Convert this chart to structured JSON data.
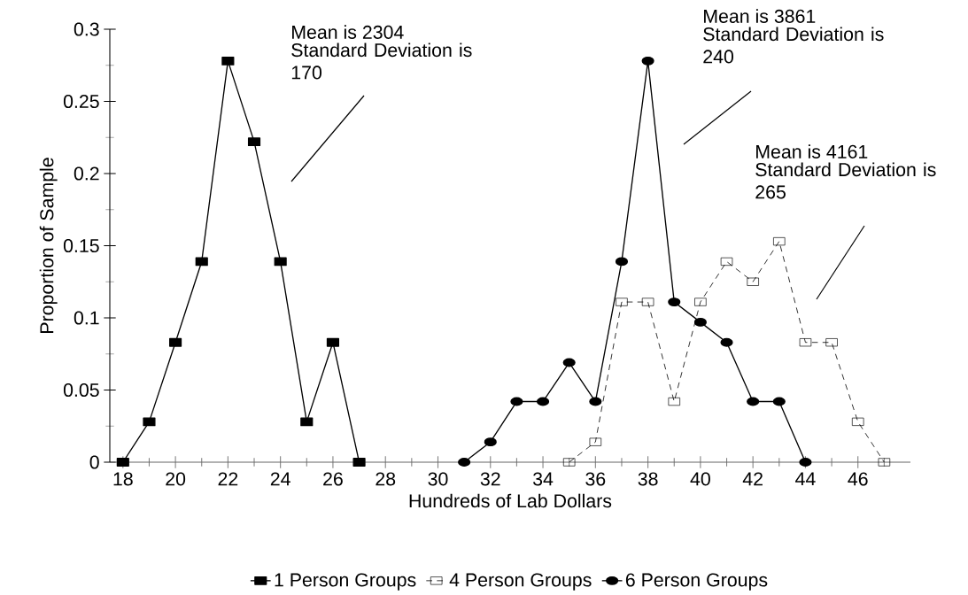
{
  "chart_data": {
    "type": "line",
    "xlabel": "Hundreds of Lab Dollars",
    "ylabel": "Proportion of Sample",
    "xlim": [
      17.5,
      48
    ],
    "ylim": [
      0,
      0.3
    ],
    "xticks": [
      18,
      {
        "value": 19,
        "label": null
      },
      20,
      {
        "value": 21,
        "label": null
      },
      22,
      {
        "value": 23,
        "label": null
      },
      24,
      {
        "value": 25,
        "label": null
      },
      26,
      {
        "value": 27,
        "label": null
      },
      28,
      {
        "value": 29,
        "label": null
      },
      30,
      {
        "value": 31,
        "label": null
      },
      32,
      {
        "value": 33,
        "label": null
      },
      34,
      {
        "value": 35,
        "label": null
      },
      36,
      {
        "value": 37,
        "label": null
      },
      38,
      {
        "value": 39,
        "label": null
      },
      40,
      {
        "value": 41,
        "label": null
      },
      42,
      {
        "value": 43,
        "label": null
      },
      44,
      {
        "value": 45,
        "label": null
      },
      46,
      {
        "value": 47,
        "label": null
      }
    ],
    "yticks": [
      0,
      {
        "value": 0.025,
        "label": null
      },
      0.05,
      {
        "value": 0.075,
        "label": null
      },
      0.1,
      {
        "value": 0.125,
        "label": null
      },
      0.15,
      {
        "value": 0.175,
        "label": null
      },
      0.2,
      {
        "value": 0.225,
        "label": null
      },
      0.25,
      {
        "value": 0.275,
        "label": null
      },
      0.3
    ],
    "grid": false,
    "legend": "bottom",
    "series": [
      {
        "name": "1 Person Groups",
        "color": "#000000",
        "marker": "square",
        "line_style": "solid",
        "x": [
          18,
          19,
          20,
          21,
          22,
          23,
          24,
          25,
          26,
          27
        ],
        "values": [
          0,
          0.028,
          0.083,
          0.139,
          0.278,
          0.222,
          0.139,
          0.028,
          0.083,
          0
        ]
      },
      {
        "name": "4 Person Groups",
        "color": "#000000",
        "marker": "square",
        "line_style": "dashed",
        "x": [
          35,
          36,
          37,
          38,
          39,
          40,
          41,
          42,
          43,
          44,
          45,
          46,
          47
        ],
        "values": [
          0,
          0.014,
          0.111,
          0.111,
          0.042,
          0.111,
          0.139,
          0.125,
          0.153,
          0.083,
          0.083,
          0.028,
          0
        ]
      },
      {
        "name": "6 Person Groups",
        "color": "#000000",
        "marker": "circle",
        "line_style": "solid",
        "x": [
          31,
          32,
          33,
          34,
          35,
          36,
          37,
          38,
          39,
          40,
          41,
          42,
          43,
          44
        ],
        "values": [
          0,
          0.014,
          0.042,
          0.042,
          0.069,
          0.042,
          0.139,
          0.278,
          0.111,
          0.097,
          0.083,
          0.042,
          0.042,
          0
        ]
      }
    ],
    "annotations": [
      "Mean is 2304",
      "Standard Deviation is 170",
      "Mean is 3861",
      "Standard Deviation is 240",
      "Mean is 4161",
      "Standard Deviation is 265"
    ]
  }
}
